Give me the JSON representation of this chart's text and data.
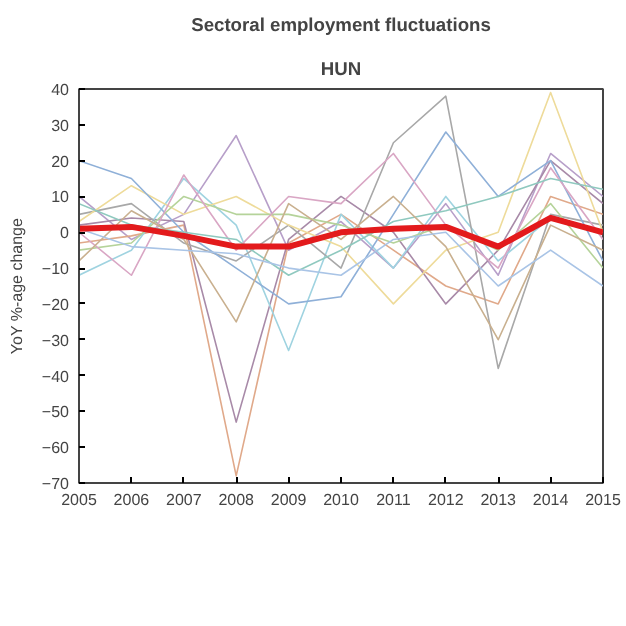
{
  "chart_data": {
    "type": "line",
    "title": "Sectoral employment fluctuations",
    "subtitle": "HUN",
    "ylabel": "YoY %-age change",
    "x": [
      2005,
      2006,
      2007,
      2008,
      2009,
      2010,
      2011,
      2012,
      2013,
      2014,
      2015
    ],
    "xlim": [
      2005,
      2015
    ],
    "xticks": [
      2005,
      2006,
      2007,
      2008,
      2009,
      2010,
      2011,
      2012,
      2013,
      2014,
      2015
    ],
    "ylim": [
      -70,
      40
    ],
    "yticks": [
      -70,
      -60,
      -50,
      -40,
      -30,
      -20,
      -10,
      0,
      10,
      20,
      30,
      40
    ],
    "grid": false,
    "line_style": "solid",
    "series": [
      {
        "color": "#b79fc9",
        "values": [
          10,
          -2,
          5,
          27,
          -5,
          3,
          -10,
          8,
          -12,
          22,
          10
        ]
      },
      {
        "color": "#e0a98a",
        "values": [
          -3,
          -1,
          2,
          -68,
          -3,
          5,
          -5,
          -15,
          -20,
          10,
          5
        ]
      },
      {
        "color": "#a88aa8",
        "values": [
          2,
          4,
          3,
          -53,
          -2,
          10,
          0,
          -20,
          -5,
          20,
          8
        ]
      },
      {
        "color": "#9fd3e0",
        "values": [
          -12,
          -5,
          15,
          2,
          -33,
          5,
          -10,
          10,
          -8,
          4,
          0
        ]
      },
      {
        "color": "#a8a8a8",
        "values": [
          5,
          8,
          -3,
          -8,
          2,
          -10,
          25,
          38,
          -38,
          5,
          2
        ]
      },
      {
        "color": "#eedb9a",
        "values": [
          3,
          13,
          5,
          10,
          2,
          -4,
          -20,
          -5,
          0,
          39,
          0
        ]
      },
      {
        "color": "#8fb0d8",
        "values": [
          20,
          15,
          0,
          -10,
          -20,
          -18,
          5,
          28,
          10,
          20,
          -8
        ]
      },
      {
        "color": "#b5d39a",
        "values": [
          -5,
          -3,
          10,
          5,
          5,
          2,
          -3,
          2,
          -5,
          8,
          -10
        ]
      },
      {
        "color": "#d9a6c4",
        "values": [
          0,
          -12,
          16,
          -5,
          10,
          8,
          22,
          2,
          -10,
          18,
          -2
        ]
      },
      {
        "color": "#8fc9bf",
        "values": [
          8,
          2,
          0,
          -2,
          -12,
          -5,
          3,
          6,
          10,
          15,
          12
        ]
      },
      {
        "color": "#c9b08f",
        "values": [
          -8,
          6,
          -2,
          -25,
          8,
          -2,
          10,
          -4,
          -30,
          2,
          -5
        ]
      },
      {
        "color": "#a9c4e6",
        "values": [
          1,
          -4,
          -5,
          -6,
          -10,
          -12,
          -2,
          0,
          -15,
          -5,
          -15
        ]
      },
      {
        "color": "#e31a1c",
        "values": [
          1,
          1.5,
          -1,
          -4,
          -4,
          0,
          1,
          1.5,
          -4,
          4,
          0
        ]
      }
    ]
  }
}
